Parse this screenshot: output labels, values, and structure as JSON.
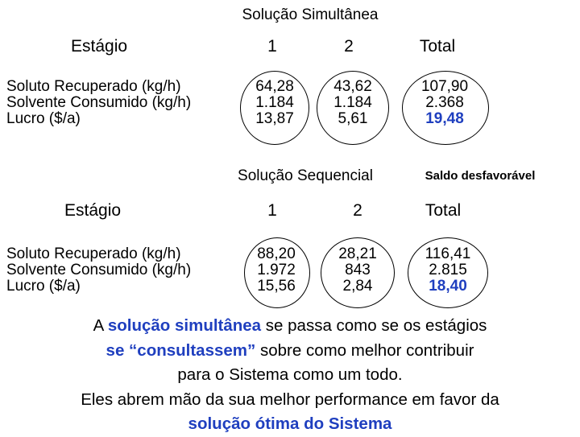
{
  "simultaneous": {
    "title": "Solução Simultânea",
    "stage_header": "Estágio",
    "col1": "1",
    "col2": "2",
    "col_total": "Total",
    "row_labels": [
      "Soluto Recuperado (kg/h)",
      "Solvente Consumido (kg/h)",
      "Lucro ($/a)"
    ],
    "stage1": [
      "64,28",
      "1.184",
      "13,87"
    ],
    "stage2": [
      "43,62",
      "1.184",
      "5,61"
    ],
    "total": [
      "107,90",
      "2.368",
      "19,48"
    ]
  },
  "sequential": {
    "title": "Solução Sequencial",
    "note": "Saldo desfavorável",
    "stage_header": "Estágio",
    "col1": "1",
    "col2": "2",
    "col_total": "Total",
    "row_labels": [
      "Soluto Recuperado (kg/h)",
      "Solvente Consumido (kg/h)",
      "Lucro ($/a)"
    ],
    "stage1": [
      "88,20",
      "1.972",
      "15,56"
    ],
    "stage2": [
      "28,21",
      "843",
      "2,84"
    ],
    "total": [
      "116,41",
      "2.815",
      "18,40"
    ]
  },
  "conclusion": {
    "p1": "A ",
    "h1": "solução simultânea",
    "p2": " se passa como se os estágios",
    "h2": "se “consultassem”",
    "p3": " sobre como melhor contribuir",
    "p4": "para o Sistema como um todo.",
    "p5": "Eles abrem mão da sua melhor performance em favor da",
    "h3": "solução ótima do Sistema"
  },
  "colors": {
    "highlight": "#1f3fbf",
    "text": "#000000",
    "background": "#ffffff"
  }
}
